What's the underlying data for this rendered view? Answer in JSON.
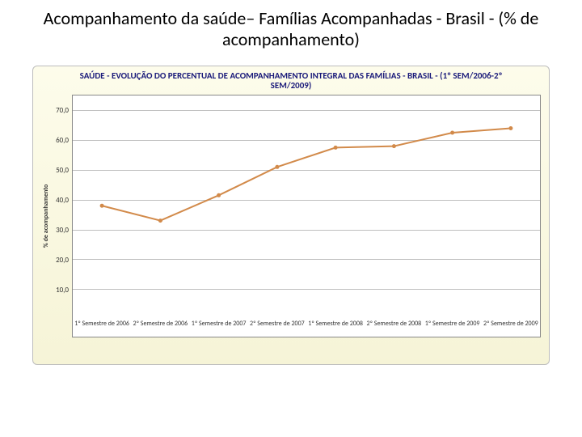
{
  "slide": {
    "title": "Acompanhamento da saúde– Famílias Acompanhadas - Brasil - (% de  acompanhamento)"
  },
  "chart": {
    "type": "line",
    "title": "SAÚDE - EVOLUÇÃO DO PERCENTUAL DE ACOMPANHAMENTO INTEGRAL DAS FAMÍLIAS - BRASIL - (1º SEM/2006-2º SEM/2009)",
    "title_color": "#1a1a7a",
    "title_fontsize": 11,
    "ylabel": "% de acompanhamento",
    "ylabel_fontsize": 8,
    "categories": [
      "1º Semestre de 2006",
      "2º Semestre de 2006",
      "1º Semestre de 2007",
      "2º Semestre de 2007",
      "1º Semestre de 2008",
      "2º Semestre de 2008",
      "1º Semestre de 2009",
      "2º Semestre de 2009"
    ],
    "values": [
      38.0,
      33.0,
      41.5,
      51.0,
      57.5,
      58.0,
      62.5,
      64.0
    ],
    "line_color": "#d28a4a",
    "marker_color": "#d28a4a",
    "marker_size": 5,
    "line_width": 2,
    "ylim": [
      0,
      75
    ],
    "yticks": [
      10.0,
      20.0,
      30.0,
      40.0,
      50.0,
      60.0,
      70.0
    ],
    "ytick_labels": [
      "10,0",
      "20,0",
      "30,0",
      "40,0",
      "50,0",
      "60,0",
      "70,0"
    ],
    "plot_background": "#ffffff",
    "panel_background_top": "#fdfceb",
    "panel_background_bottom": "#f6f4d7",
    "panel_border_color": "#bdbdbd",
    "grid_color": "#bfbfbf",
    "axis_color": "#888888",
    "tick_font_color": "#333333",
    "tick_fontsize": 9,
    "xlabel_fontsize": 8
  }
}
